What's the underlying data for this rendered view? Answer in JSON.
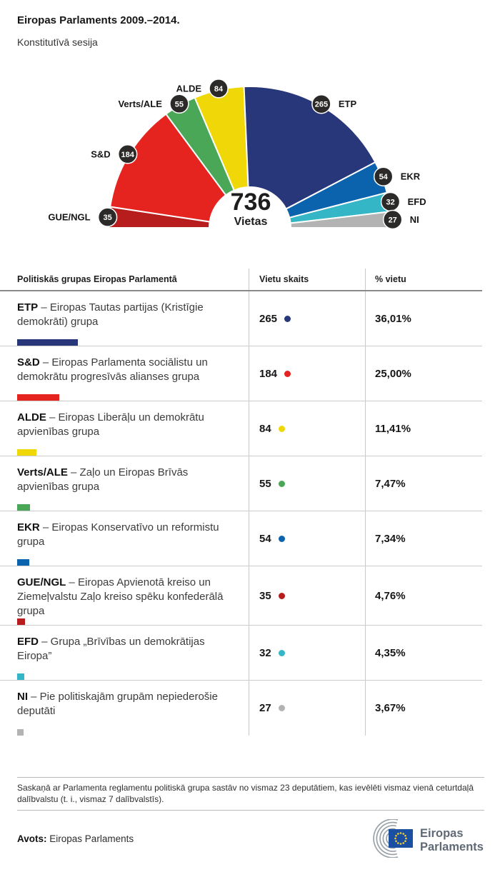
{
  "header": {
    "title": "Eiropas Parlaments 2009.–2014.",
    "subtitle": "Konstitutīvā sesija"
  },
  "chart_data": {
    "type": "hemicycle",
    "total": 736,
    "center_label": "736",
    "center_sublabel": "Vietas",
    "legend_position": "around-arc",
    "groups_left_to_right": [
      {
        "name": "GUE/NGL",
        "seats": 35,
        "color": "#b71d1d"
      },
      {
        "name": "S&D",
        "seats": 184,
        "color": "#e5231f"
      },
      {
        "name": "Verts/ALE",
        "seats": 55,
        "color": "#4aa757"
      },
      {
        "name": "ALDE",
        "seats": 84,
        "color": "#efd708"
      },
      {
        "name": "ETP",
        "seats": 265,
        "color": "#283779"
      },
      {
        "name": "EKR",
        "seats": 54,
        "color": "#0b62ad"
      },
      {
        "name": "EFD",
        "seats": 32,
        "color": "#35b6c6"
      },
      {
        "name": "NI",
        "seats": 27,
        "color": "#b3b3b3"
      }
    ],
    "badge_color": "#2b2a28",
    "badge_text_color": "#ffffff"
  },
  "table": {
    "columns": [
      "Politiskās grupas Eiropas Parlamentā",
      "Vietu skaits",
      "% vietu"
    ],
    "rows": [
      {
        "abbr": "ETP",
        "desc": "– Eiropas Tautas partijas (Kristīgie demokrāti) grupa",
        "seats": "265",
        "percent": "36,01%",
        "pct": 36.01,
        "color": "#283779"
      },
      {
        "abbr": "S&D",
        "desc": "– Eiropas Parlamenta sociālistu un demokrātu progresīvās alianses grupa",
        "seats": "184",
        "percent": "25,00%",
        "pct": 25.0,
        "color": "#e5231f"
      },
      {
        "abbr": "ALDE",
        "desc": "– Eiropas Liberāļu un demokrātu apvienības grupa",
        "seats": "84",
        "percent": "11,41%",
        "pct": 11.41,
        "color": "#efd708"
      },
      {
        "abbr": "Verts/ALE",
        "desc": "– Zaļo un Eiropas Brīvās apvienības grupa",
        "seats": "55",
        "percent": "7,47%",
        "pct": 7.47,
        "color": "#4aa757"
      },
      {
        "abbr": "EKR",
        "desc": "– Eiropas Konservatīvo un reformistu grupa",
        "seats": "54",
        "percent": "7,34%",
        "pct": 7.34,
        "color": "#0b62ad"
      },
      {
        "abbr": "GUE/NGL",
        "desc": "– Eiropas Apvienotā kreiso un Ziemeļvalstu Zaļo kreiso spēku konfederālā grupa",
        "seats": "35",
        "percent": "4,76%",
        "pct": 4.76,
        "color": "#b71d1d"
      },
      {
        "abbr": "EFD",
        "desc": "– Grupa „Brīvības un demokrātijas Eiropa”",
        "seats": "32",
        "percent": "4,35%",
        "pct": 4.35,
        "color": "#35b6c6"
      },
      {
        "abbr": "NI",
        "desc": "– Pie politiskajām grupām nepiederošie deputāti",
        "seats": "27",
        "percent": "3,67%",
        "pct": 3.67,
        "color": "#b3b3b3"
      }
    ]
  },
  "footnote": "Saskaņā ar Parlamenta reglamentu politiskā grupa sastāv no vismaz 23 deputātiem, kas ievēlēti vismaz vienā ceturtdaļā dalībvalstu (t. i., vismaz 7 dalībvalstīs).",
  "source": {
    "label": "Avots:",
    "value": "Eiropas Parlaments"
  },
  "logo": {
    "line1": "Eiropas",
    "line2": "Parlaments",
    "flag_color": "#1b4fa1",
    "star_color": "#f8d12e",
    "text_color": "#5f6a76",
    "arc_color": "#99a1a9"
  }
}
